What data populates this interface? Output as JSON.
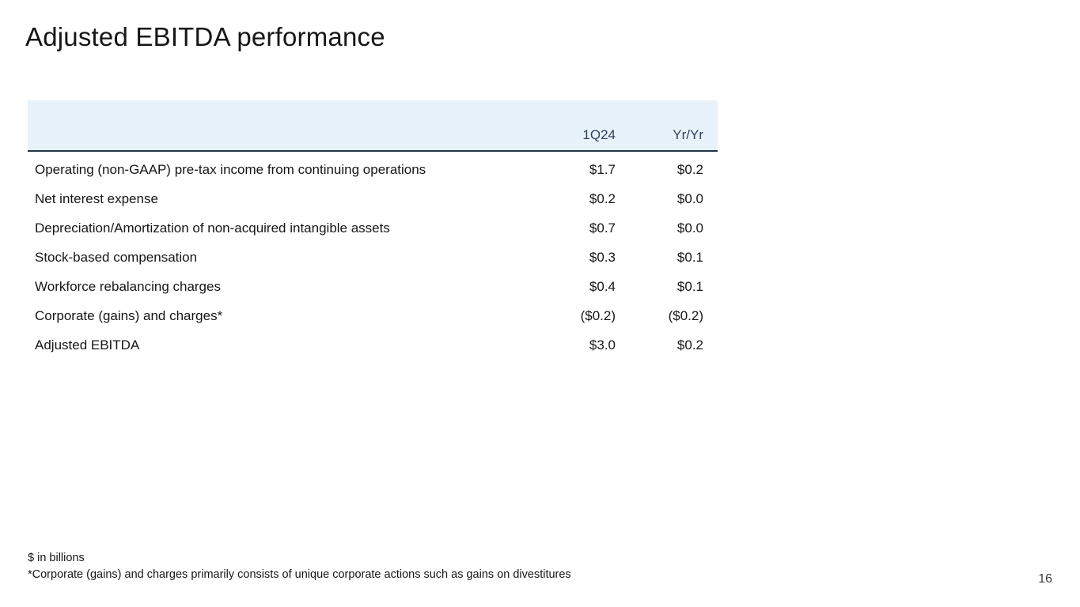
{
  "slide": {
    "title": "Adjusted EBITDA performance",
    "page_number": "16"
  },
  "table": {
    "columns": [
      "1Q24",
      "Yr/Yr"
    ],
    "rows": [
      {
        "label": "Operating (non-GAAP) pre-tax income from continuing operations",
        "q": "$1.7",
        "yr": "$0.2"
      },
      {
        "label": "Net interest expense",
        "q": "$0.2",
        "yr": "$0.0"
      },
      {
        "label": "Depreciation/Amortization of non-acquired intangible assets",
        "q": "$0.7",
        "yr": "$0.0"
      },
      {
        "label": "Stock-based compensation",
        "q": "$0.3",
        "yr": "$0.1"
      },
      {
        "label": "Workforce rebalancing charges",
        "q": "$0.4",
        "yr": "$0.1"
      },
      {
        "label": "Corporate (gains) and charges*",
        "q": "($0.2)",
        "yr": "($0.2)"
      },
      {
        "label": "Adjusted EBITDA",
        "q": "$3.0",
        "yr": "$0.2"
      }
    ]
  },
  "footnotes": {
    "line1": "$ in billions",
    "line2": "*Corporate (gains) and charges primarily consists of unique corporate actions such as gains on divestitures"
  },
  "colors": {
    "header_band_bg": "#e7f2fa",
    "header_text": "#30405a",
    "divider": "#243344",
    "body_text": "#161616",
    "page_number": "#3d3d3d"
  }
}
